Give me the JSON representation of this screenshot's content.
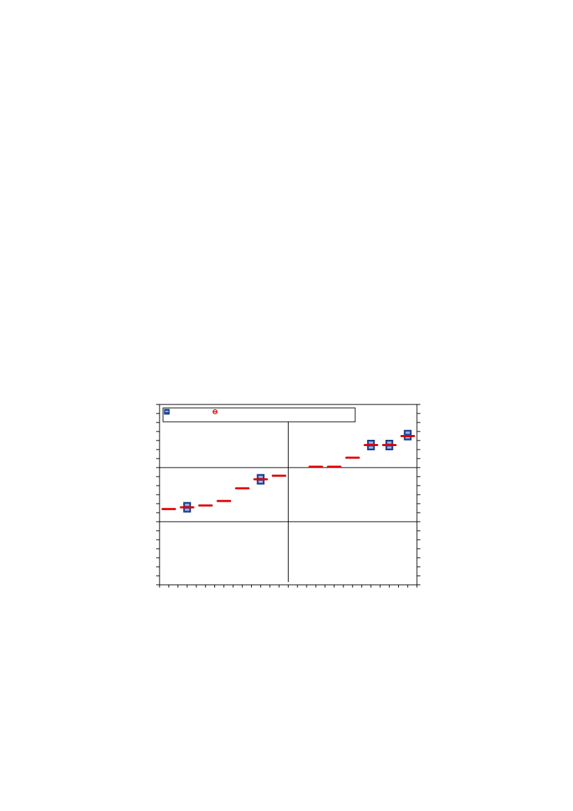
{
  "chart_data": {
    "type": "scatter",
    "title": "",
    "xlabel": "",
    "ylabel": "",
    "grid": false,
    "legend": "top-left",
    "x": [
      1,
      2,
      3,
      4,
      5,
      6,
      7,
      8,
      9,
      10,
      11,
      12,
      13,
      14
    ],
    "xlim": [
      0.5,
      14.5
    ],
    "ylim": [
      0,
      20
    ],
    "reference_lines": {
      "horizontal": [
        7,
        13
      ],
      "vertical": 7.5
    },
    "series": [
      {
        "marker": "square",
        "color": "#1f4fa6",
        "points": [
          {
            "x": 2,
            "y": 8.6
          },
          {
            "x": 6,
            "y": 11.7
          },
          {
            "x": 12,
            "y": 15.5
          },
          {
            "x": 13,
            "y": 15.5
          },
          {
            "x": 14,
            "y": 16.6
          }
        ]
      },
      {
        "marker": "dash",
        "color": "#e00000",
        "points": [
          {
            "x": 1,
            "y": 8.4
          },
          {
            "x": 2,
            "y": 8.6
          },
          {
            "x": 3,
            "y": 8.8
          },
          {
            "x": 4,
            "y": 9.3
          },
          {
            "x": 5,
            "y": 10.7
          },
          {
            "x": 6,
            "y": 11.7
          },
          {
            "x": 7,
            "y": 12.1
          },
          {
            "x": 9,
            "y": 13.1
          },
          {
            "x": 10,
            "y": 13.1
          },
          {
            "x": 11,
            "y": 14.1
          },
          {
            "x": 12,
            "y": 15.5
          },
          {
            "x": 13,
            "y": 15.5
          },
          {
            "x": 14,
            "y": 16.5
          }
        ]
      }
    ]
  }
}
